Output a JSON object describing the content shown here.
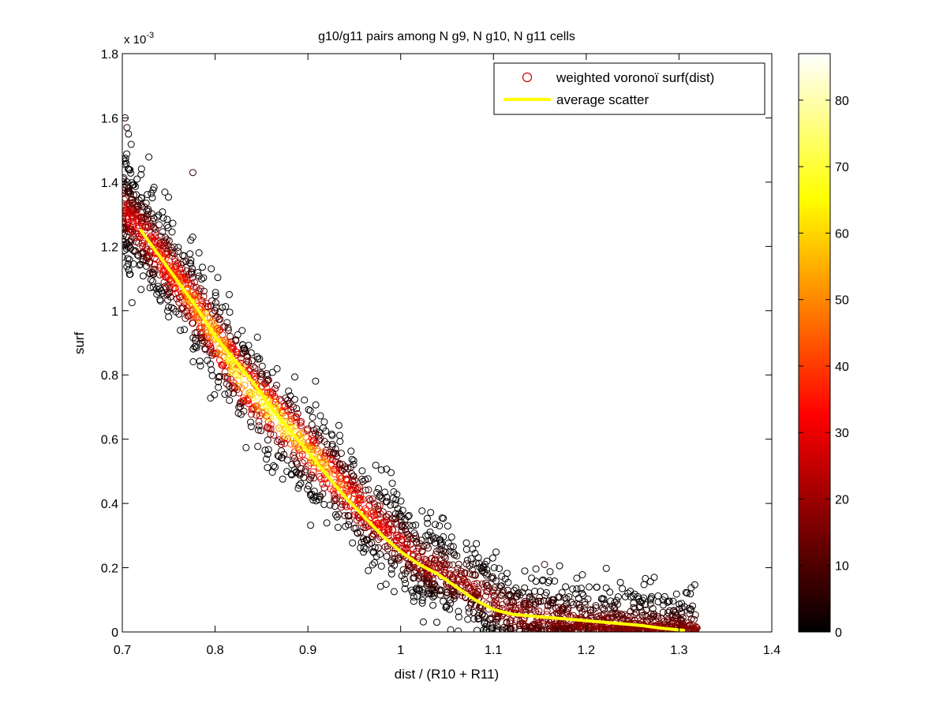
{
  "chart_data": {
    "type": "scatter",
    "title": "g10/g11 pairs among N g9, N g10, N g11 cells",
    "xlabel": "dist / (R10 + R11)",
    "ylabel": "surf",
    "y_exponent_label": "x 10",
    "y_exponent_power": "-3",
    "xlim": [
      0.7,
      1.4
    ],
    "ylim": [
      0,
      0.0018
    ],
    "x_ticks": [
      0.7,
      0.8,
      0.9,
      1.0,
      1.1,
      1.2,
      1.3,
      1.4
    ],
    "x_tick_labels": [
      "0.7",
      "0.8",
      "0.9",
      "1",
      "1.1",
      "1.2",
      "1.3",
      "1.4"
    ],
    "y_ticks": [
      0,
      0.0002,
      0.0004,
      0.0006,
      0.0008,
      0.001,
      0.0012,
      0.0014,
      0.0016,
      0.0018
    ],
    "y_tick_labels": [
      "0",
      "0.2",
      "0.4",
      "0.6",
      "0.8",
      "1",
      "1.2",
      "1.4",
      "1.6",
      "1.8"
    ],
    "grid": false,
    "legend_position": "top-right",
    "legend": [
      {
        "label": "weighted voronoï surf(dist)",
        "marker": "circle",
        "color": "#cc0000"
      },
      {
        "label": "average scatter",
        "marker": "line",
        "color": "#ffff00"
      }
    ],
    "series": [
      {
        "name": "weighted voronoï surf(dist)",
        "kind": "scatter",
        "color_mapped": true,
        "trend_x": [
          0.7,
          0.72,
          0.78,
          0.83,
          0.88,
          0.95,
          1.02,
          1.07,
          1.12,
          1.2,
          1.3
        ],
        "trend_y": [
          0.00132,
          0.00125,
          0.00101,
          0.00078,
          0.00063,
          0.00041,
          0.00022,
          0.00015,
          5.5e-05,
          2.5e-05,
          5e-06
        ],
        "x_range": [
          0.7,
          1.32
        ],
        "outliers_x": [
          0.703,
          0.705,
          0.776,
          1.155
        ],
        "outliers_y": [
          0.0016,
          0.00157,
          0.00143,
          0.00021
        ]
      },
      {
        "name": "average scatter",
        "kind": "line",
        "color": "#ffff00",
        "x": [
          0.72,
          0.75,
          0.78,
          0.8,
          0.82,
          0.84,
          0.86,
          0.88,
          0.9,
          0.92,
          0.94,
          0.96,
          0.98,
          1.0,
          1.02,
          1.04,
          1.06,
          1.08,
          1.1,
          1.12,
          1.14,
          1.16,
          1.18,
          1.2,
          1.22,
          1.24,
          1.26,
          1.28,
          1.305
        ],
        "y": [
          0.00125,
          0.00113,
          0.00101,
          0.00092,
          0.00085,
          0.00078,
          0.0007,
          0.00063,
          0.00056,
          0.00049,
          0.00042,
          0.00036,
          0.0003,
          0.00025,
          0.00021,
          0.00018,
          0.00014,
          0.0001,
          7e-05,
          5.5e-05,
          5e-05,
          4.5e-05,
          4e-05,
          3.5e-05,
          3e-05,
          2.5e-05,
          2e-05,
          1.2e-05,
          5e-06
        ]
      }
    ],
    "colorbar": {
      "colormap": "hot",
      "range": [
        0,
        87
      ],
      "ticks": [
        0,
        10,
        20,
        30,
        40,
        50,
        60,
        70,
        80
      ],
      "tick_labels": [
        "0",
        "10",
        "20",
        "30",
        "40",
        "50",
        "60",
        "70",
        "80"
      ]
    }
  }
}
